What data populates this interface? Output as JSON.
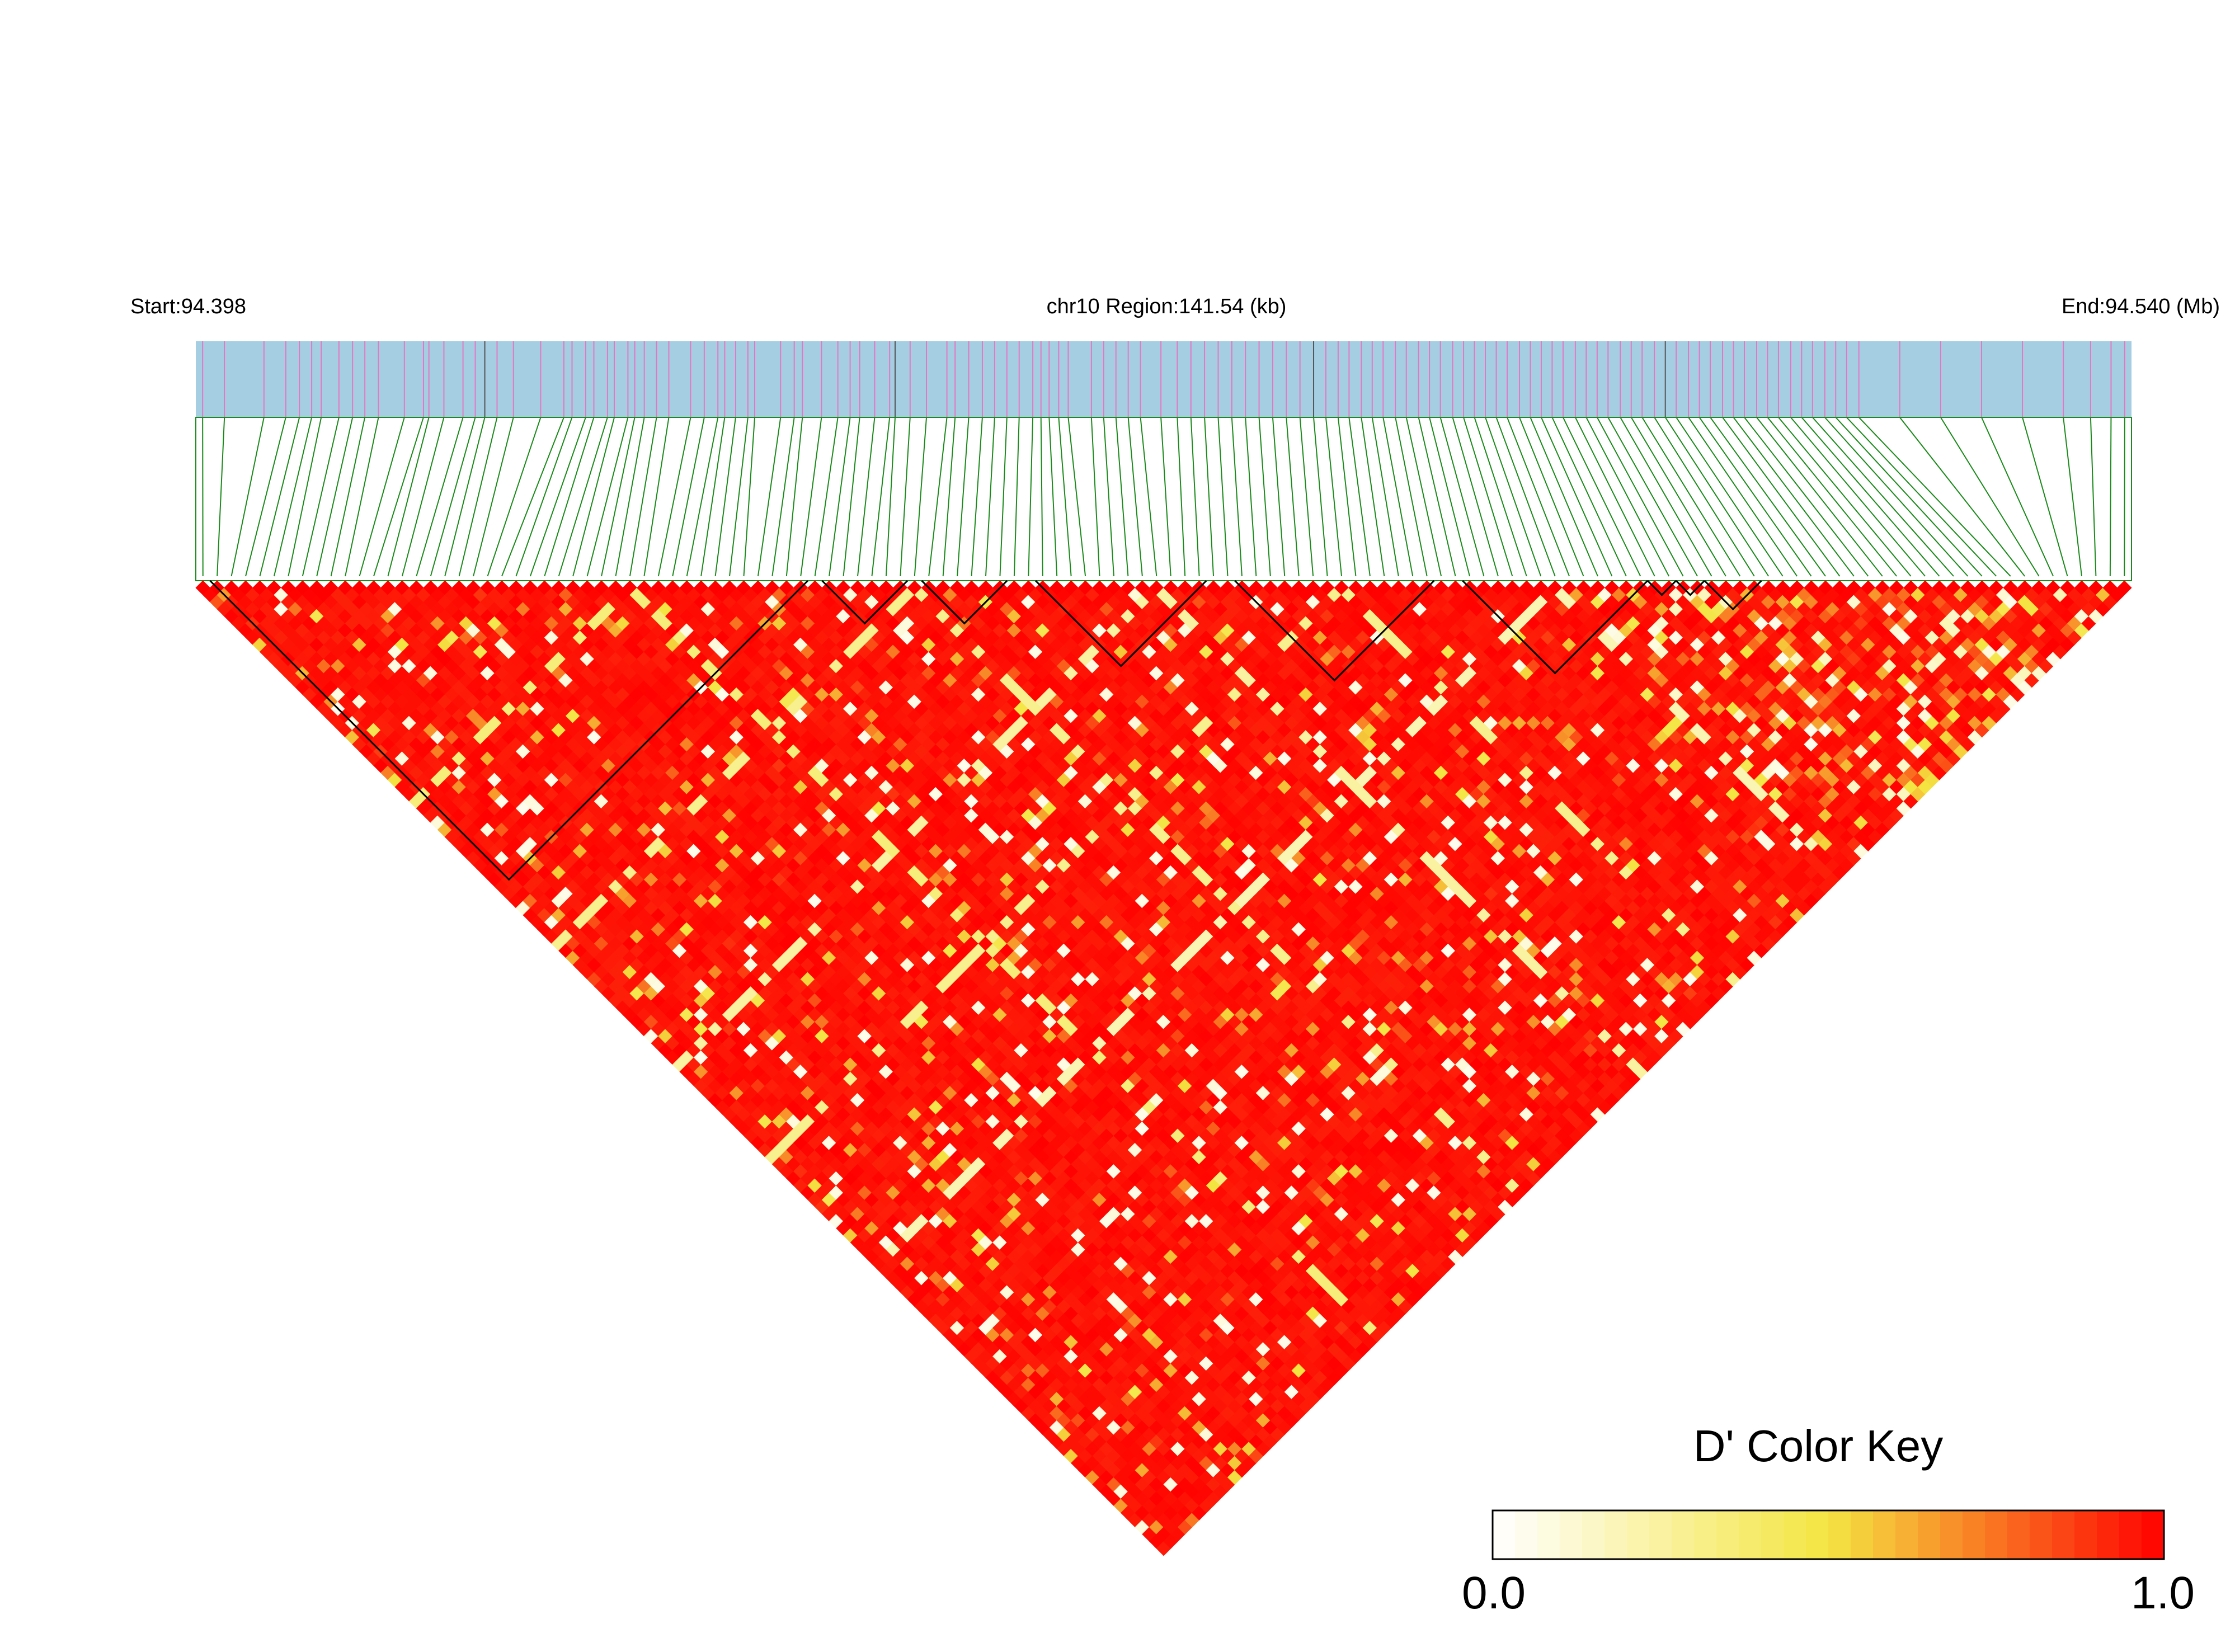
{
  "header": {
    "start_label": "Start:94.398",
    "region_label": "chr10 Region:141.54 (kb)",
    "end_label": "End:94.540 (Mb)"
  },
  "colors": {
    "track_fill": "#a6cee3",
    "snp_tick": "#e377c2",
    "snp_tick_alt": "#555555",
    "connector_line": "#1a8a1a",
    "block_outline": "#000000",
    "ld_high": "#ff0000",
    "ld_mid": "#f4e542",
    "ld_low": "#ffffff"
  },
  "chart_data": {
    "type": "heatmap",
    "variant": "LD triangle (D')",
    "chromosome": "chr10",
    "start_mb": 94.398,
    "end_mb": 94.54,
    "region_kb": 141.54,
    "marker_count": 136,
    "snp_positions_mb": [
      94.3985,
      94.4001,
      94.403,
      94.4046,
      94.4056,
      94.4065,
      94.4072,
      94.4085,
      94.4095,
      94.4104,
      94.4114,
      94.4133,
      94.4147,
      94.4151,
      94.4162,
      94.4176,
      94.4185,
      94.4192,
      94.4201,
      94.4213,
      94.4233,
      94.425,
      94.4256,
      94.4266,
      94.4272,
      94.4282,
      94.4287,
      94.4297,
      94.4302,
      94.4309,
      94.4318,
      94.4327,
      94.4343,
      94.4353,
      94.4363,
      94.4368,
      94.4376,
      94.4385,
      94.439,
      94.4409,
      94.4419,
      94.4425,
      94.4439,
      94.4451,
      94.446,
      94.4467,
      94.4478,
      94.4489,
      94.4493,
      94.4504,
      94.4516,
      94.4531,
      94.4537,
      94.4547,
      94.4557,
      94.4566,
      94.4575,
      94.4584,
      94.4594,
      94.46,
      94.4606,
      94.4613,
      94.462,
      94.4637,
      94.4646,
      94.4655,
      94.4664,
      94.4673,
      94.4688,
      94.47,
      94.471,
      94.472,
      94.473,
      94.474,
      94.475,
      94.476,
      94.477,
      94.478,
      94.479,
      94.48,
      94.4809,
      94.4818,
      94.4826,
      94.4835,
      94.4843,
      94.4851,
      94.486,
      94.4868,
      94.4877,
      94.4885,
      94.4893,
      94.4902,
      94.491,
      94.4918,
      94.4926,
      94.4934,
      94.4942,
      94.4951,
      94.4959,
      94.4967,
      94.4975,
      94.4983,
      94.4992,
      94.5,
      94.5008,
      94.5016,
      94.5025,
      94.5033,
      94.5041,
      94.505,
      94.5058,
      94.5066,
      94.5075,
      94.5083,
      94.5091,
      94.51,
      94.5108,
      94.5116,
      94.5125,
      94.5133,
      94.5141,
      94.515,
      94.5158,
      94.5166,
      94.5175,
      94.5183,
      94.5191,
      94.52,
      94.523,
      94.526,
      94.529,
      94.532,
      94.535,
      94.537,
      94.5385,
      94.5395
    ],
    "value_range": [
      0.0,
      1.0
    ],
    "color_scale": [
      "#ffffff",
      "#f4e542",
      "#ff0000"
    ],
    "haplotype_blocks": [
      [
        1,
        42
      ],
      [
        44,
        49
      ],
      [
        51,
        56
      ],
      [
        59,
        70
      ],
      [
        73,
        86
      ],
      [
        89,
        101
      ],
      [
        102,
        103
      ],
      [
        104,
        105
      ],
      [
        106,
        109
      ]
    ],
    "low_ld_bands": [
      {
        "marker": 30,
        "value": 0.35
      },
      {
        "marker": 50,
        "value": 0.3
      },
      {
        "marker": 67,
        "value": 0.25
      },
      {
        "marker": 80,
        "value": 0.3
      },
      {
        "marker": 95,
        "value": 0.2
      }
    ],
    "legend": {
      "title": "D' Color Key",
      "min_label": "0.0",
      "max_label": "1.0",
      "position": "bottom-right"
    }
  }
}
